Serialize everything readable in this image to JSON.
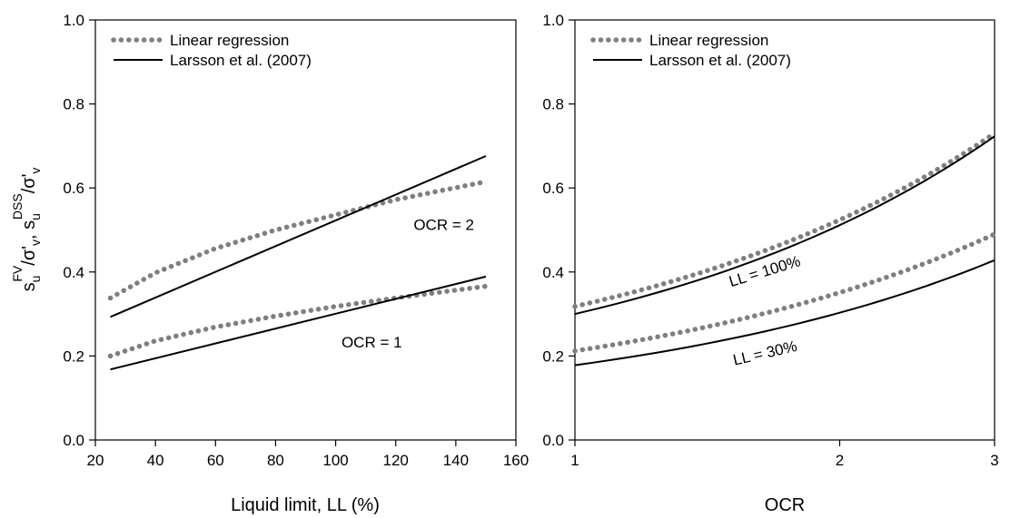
{
  "chart_data": [
    {
      "type": "line",
      "xlabel": "Liquid limit, LL (%)",
      "ylabel": "s_u^FV/σ'_v, s_u^DSS/σ'_v",
      "ylabel_parts": {
        "s1": "s",
        "sub1": "u",
        "sup1": "FV",
        "mid": "/σ'",
        "sub2": "v",
        "comma": ", ",
        "s2": "s",
        "sub3": "u",
        "sup2": "DSS",
        "mid2": "/σ'",
        "sub4": "v"
      },
      "xlim": [
        20,
        160
      ],
      "ylim": [
        0.0,
        1.0
      ],
      "xticks": [
        20,
        40,
        60,
        80,
        100,
        120,
        140,
        160
      ],
      "yticks": [
        0.0,
        0.2,
        0.4,
        0.6,
        0.8,
        1.0
      ],
      "xtick_labels": [
        "20",
        "40",
        "60",
        "80",
        "100",
        "120",
        "140",
        "160"
      ],
      "ytick_labels": [
        "0.0",
        "0.2",
        "0.4",
        "0.6",
        "0.8",
        "1.0"
      ],
      "grid": false,
      "legend_position": "top-left",
      "legend": [
        {
          "label": "Linear regression",
          "style": "dotted",
          "color": "#7f7f7f"
        },
        {
          "label": "Larsson et al. (2007)",
          "style": "solid",
          "color": "#000000"
        }
      ],
      "series": [
        {
          "style": "dotted",
          "group": "OCR = 2",
          "x": [
            25,
            40,
            60,
            80,
            100,
            120,
            150
          ],
          "y": [
            0.338,
            0.398,
            0.456,
            0.5,
            0.536,
            0.572,
            0.615
          ]
        },
        {
          "style": "solid",
          "group": "OCR = 2",
          "x": [
            25,
            150
          ],
          "y": [
            0.293,
            0.676
          ]
        },
        {
          "style": "dotted",
          "group": "OCR = 1",
          "x": [
            25,
            40,
            60,
            80,
            100,
            120,
            150
          ],
          "y": [
            0.2,
            0.236,
            0.269,
            0.295,
            0.318,
            0.338,
            0.366
          ]
        },
        {
          "style": "solid",
          "group": "OCR = 1",
          "x": [
            25,
            150
          ],
          "y": [
            0.168,
            0.389
          ]
        }
      ],
      "annotations": [
        {
          "text": "OCR = 2",
          "x": 136,
          "y": 0.5
        },
        {
          "text": "OCR = 1",
          "x": 112,
          "y": 0.22
        }
      ]
    },
    {
      "type": "line",
      "xlabel": "OCR",
      "xscale": "log",
      "xlim": [
        1,
        3
      ],
      "ylim": [
        0.0,
        1.0
      ],
      "xticks": [
        1,
        2,
        3
      ],
      "yticks": [
        0.0,
        0.2,
        0.4,
        0.6,
        0.8,
        1.0
      ],
      "xtick_labels": [
        "1",
        "2",
        "3"
      ],
      "ytick_labels": [
        "0.0",
        "0.2",
        "0.4",
        "0.6",
        "0.8",
        "1.0"
      ],
      "grid": false,
      "legend_position": "top-left",
      "legend": [
        {
          "label": "Linear regression",
          "style": "dotted",
          "color": "#7f7f7f"
        },
        {
          "label": "Larsson et al. (2007)",
          "style": "solid",
          "color": "#000000"
        }
      ],
      "series": [
        {
          "style": "dotted",
          "group": "LL = 100%",
          "x": [
            1,
            3
          ],
          "y": [
            0.318,
            0.73
          ]
        },
        {
          "style": "solid",
          "group": "LL = 100%",
          "x": [
            1,
            3
          ],
          "y": [
            0.3,
            0.723
          ]
        },
        {
          "style": "dotted",
          "group": "LL = 30%",
          "x": [
            1,
            3
          ],
          "y": [
            0.212,
            0.49
          ]
        },
        {
          "style": "solid",
          "group": "LL = 30%",
          "x": [
            1,
            3
          ],
          "y": [
            0.178,
            0.428
          ]
        }
      ],
      "annotations": [
        {
          "text": "LL = 100%",
          "x": 1.65,
          "y": 0.39,
          "rotate": -17
        },
        {
          "text": "LL = 30%",
          "x": 1.65,
          "y": 0.195,
          "rotate": -13
        }
      ]
    }
  ]
}
